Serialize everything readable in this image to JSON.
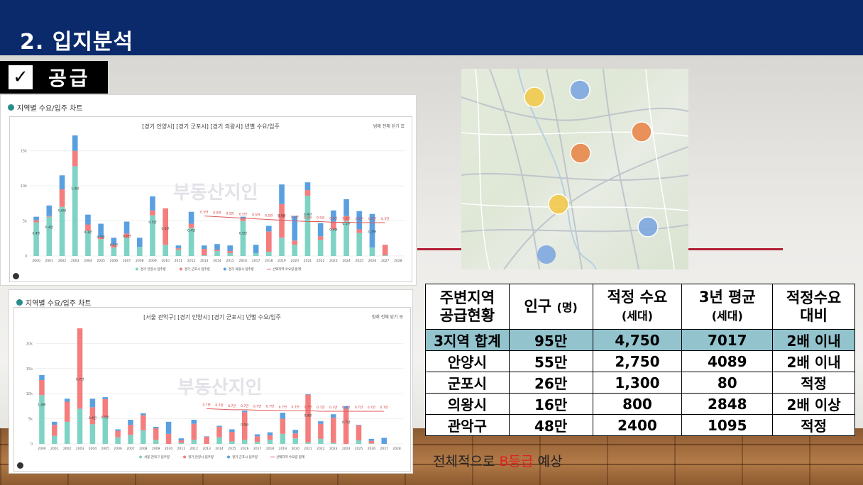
{
  "header": {
    "title": "2. 입지분석"
  },
  "section": {
    "label": "공급"
  },
  "chart_data": [
    {
      "type": "bar",
      "heading": "지역별 수요/입주 차트",
      "title": "[경기 안양시] [경기 군포시] [경기 의왕시] 년별 수요/입주",
      "menu_label": "범례 전체 닫기",
      "watermark": "부동산지인",
      "categories": [
        "2000",
        "2001",
        "2002",
        "2003",
        "2004",
        "2005",
        "2006",
        "2007",
        "2008",
        "2009",
        "2010",
        "2011",
        "2012",
        "2013",
        "2014",
        "2015",
        "2016",
        "2017",
        "2018",
        "2019",
        "2020",
        "2021",
        "2022",
        "2023",
        "2024",
        "2025",
        "2026",
        "2027",
        "2028"
      ],
      "yticks": [
        "0",
        "5k",
        "10k",
        "15k"
      ],
      "ylim": [
        0,
        18000
      ],
      "series": [
        {
          "name": "경기 안양시 입주량",
          "color": "#7fd3c4",
          "values": [
            4800,
            5600,
            7000,
            12800,
            3600,
            2400,
            1200,
            2600,
            1300,
            5800,
            1600,
            900,
            4000,
            100,
            700,
            400,
            5000,
            400,
            600,
            2600,
            1600,
            8600,
            2300,
            3800,
            5000,
            3300,
            1200,
            100,
            0
          ]
        },
        {
          "name": "경기 군포시 입주량",
          "color": "#f47d7d",
          "values": [
            300,
            100,
            2500,
            2200,
            900,
            300,
            400,
            600,
            0,
            700,
            5200,
            200,
            600,
            900,
            200,
            300,
            300,
            0,
            2900,
            4800,
            600,
            800,
            500,
            1100,
            700,
            500,
            0,
            1500,
            0
          ]
        },
        {
          "name": "경기 의왕시 입주량",
          "color": "#5aa0e0",
          "values": [
            500,
            1500,
            2000,
            2200,
            1400,
            1900,
            1000,
            1700,
            1300,
            2000,
            0,
            400,
            1700,
            500,
            800,
            800,
            300,
            1200,
            800,
            2800,
            3500,
            1100,
            1900,
            1600,
            2400,
            2600,
            4800,
            0,
            0
          ]
        },
        {
          "name": "선택지역 수요량 합계",
          "color": "#e05a5a",
          "type": "line",
          "values": [
            null,
            null,
            null,
            null,
            null,
            null,
            null,
            null,
            null,
            null,
            null,
            null,
            null,
            5700,
            5600,
            5500,
            5400,
            5300,
            5200,
            5100,
            5000,
            4900,
            4900,
            4800,
            4800,
            4750,
            4750,
            4750,
            null
          ]
        }
      ],
      "data_labels": [
        {
          "x": "2000",
          "value": "0.4만"
        },
        {
          "x": "2001",
          "value": "0.4만"
        },
        {
          "x": "2002",
          "value": "0.6만"
        },
        {
          "x": "2003",
          "value": "1.3만"
        },
        {
          "x": "2004",
          "value": "0.3만"
        },
        {
          "x": "2005",
          "value": "0.2만"
        },
        {
          "x": "2006",
          "value": "0.1만"
        },
        {
          "x": "2007",
          "value": "0.2만"
        },
        {
          "x": "2009",
          "value": "0.5만"
        },
        {
          "x": "2010",
          "value": "0.5만"
        },
        {
          "x": "2012",
          "value": "0.4만"
        },
        {
          "x": "2016",
          "value": "0.5만"
        },
        {
          "x": "2019",
          "value": "0.8만"
        },
        {
          "x": "2021",
          "value": "0.9만"
        },
        {
          "x": "2023",
          "value": "0.4만"
        },
        {
          "x": "2024",
          "value": "0.5만"
        },
        {
          "x": "2026",
          "value": "0.3만"
        }
      ],
      "demand_labels": [
        "0.5만",
        "0.5만",
        "0.5만",
        "0.5만",
        "0.5만",
        "0.5만",
        "0.5만",
        "0.5만",
        "0.5만",
        "0.5만",
        "0.5만",
        "0.5만",
        "0.5만",
        "0.5만",
        "0.5만",
        "0.5만"
      ],
      "legend": [
        "경기 안양시 입주량",
        "경기 군포시 입주량",
        "경기 의왕시 입주량",
        "선택지역 수요량 합계"
      ]
    },
    {
      "type": "bar",
      "heading": "지역별 수요/입주 차트",
      "title": "[서울 관악구] [경기 안양시] [경기 군포시] 년별 수요/입주",
      "menu_label": "범례 전체 닫기",
      "watermark": "부동산지인",
      "categories": [
        "2000",
        "2001",
        "2002",
        "2003",
        "2004",
        "2005",
        "2006",
        "2007",
        "2008",
        "2009",
        "2010",
        "2011",
        "2012",
        "2013",
        "2014",
        "2015",
        "2016",
        "2017",
        "2018",
        "2019",
        "2020",
        "2021",
        "2022",
        "2023",
        "2024",
        "2025",
        "2026",
        "2027",
        "2028"
      ],
      "yticks": [
        "0",
        "5k",
        "10k",
        "15k",
        "20k"
      ],
      "ylim": [
        0,
        24000
      ],
      "series": [
        {
          "name": "서울 관악구 입주량",
          "color": "#7fd3c4",
          "values": [
            9700,
            1600,
            4400,
            7000,
            3900,
            5300,
            1300,
            1800,
            2700,
            800,
            0,
            200,
            800,
            0,
            1300,
            500,
            800,
            400,
            800,
            2000,
            1100,
            300,
            1000,
            200,
            0,
            700,
            100,
            0,
            0
          ]
        },
        {
          "name": "경기 안양시 입주량",
          "color": "#f47d7d",
          "values": [
            3000,
            2200,
            4000,
            16000,
            3400,
            3600,
            1300,
            2000,
            3000,
            2300,
            2000,
            500,
            3200,
            1400,
            2100,
            1900,
            5500,
            1100,
            900,
            3000,
            1000,
            9500,
            3000,
            5000,
            7000,
            3000,
            500,
            0,
            0
          ]
        },
        {
          "name": "경기 군포시 입주량",
          "color": "#5aa0e0",
          "values": [
            1000,
            600,
            600,
            0,
            1700,
            400,
            300,
            1000,
            400,
            300,
            2400,
            400,
            800,
            100,
            200,
            500,
            300,
            400,
            600,
            1200,
            700,
            100,
            500,
            700,
            500,
            100,
            400,
            1200,
            0
          ]
        },
        {
          "name": "선택지역 수요량 합계",
          "color": "#e05a5a",
          "type": "line",
          "values": [
            null,
            null,
            null,
            null,
            null,
            null,
            null,
            null,
            null,
            null,
            null,
            null,
            null,
            7000,
            6900,
            6800,
            6800,
            6700,
            6700,
            6600,
            6600,
            6600,
            6500,
            6500,
            6500,
            6500,
            6500,
            6500,
            null
          ]
        }
      ],
      "data_labels": [
        {
          "x": "2000",
          "value": "1.0만"
        },
        {
          "x": "2003",
          "value": "0.7만"
        },
        {
          "x": "2004",
          "value": "0.4만"
        },
        {
          "x": "2005",
          "value": "0.5만"
        },
        {
          "x": "2016",
          "value": "0.5만"
        },
        {
          "x": "2021",
          "value": "0.9만"
        },
        {
          "x": "2024",
          "value": "0.7만"
        }
      ],
      "demand_labels": [
        "0.7만",
        "0.7만",
        "0.7만",
        "0.7만",
        "0.7만",
        "0.7만",
        "0.7만",
        "0.7만",
        "0.7만",
        "0.7만",
        "0.7만",
        "0.7만",
        "0.7만",
        "0.7만",
        "0.7만"
      ],
      "legend": [
        "서울 관악구 입주량",
        "경기 안양시 입주량",
        "경기 군포시 입주량",
        "선택지역 수요량 합계"
      ]
    }
  ],
  "map": {
    "markers": [
      {
        "color": "#f2c94c"
      },
      {
        "color": "#7ea7e0"
      },
      {
        "color": "#e8874a"
      },
      {
        "color": "#e8874a"
      },
      {
        "color": "#f2c94c"
      },
      {
        "color": "#7ea7e0"
      }
    ]
  },
  "table": {
    "headers": [
      {
        "main": "주변지역",
        "sub": "공급현황",
        "sub_small": false
      },
      {
        "main": "인구",
        "sub": "(명)",
        "inline": true
      },
      {
        "main": "적정 수요",
        "sub": "(세대)",
        "sub_small": true
      },
      {
        "main": "3년 평균",
        "sub": "(세대)",
        "sub_small": true
      },
      {
        "main": "적정수요",
        "sub": "대비",
        "sub_small": false
      }
    ],
    "rows": [
      {
        "region": "3지역 합계",
        "population": "95만",
        "demand": "4,750",
        "avg3y": "7017",
        "ratio": "2배 이내",
        "highlight": true
      },
      {
        "region": "안양시",
        "population": "55만",
        "demand": "2,750",
        "avg3y": "4089",
        "ratio": "2배 이내",
        "highlight": false
      },
      {
        "region": "군포시",
        "population": "26만",
        "demand": "1,300",
        "avg3y": "80",
        "ratio": "적정",
        "highlight": false
      },
      {
        "region": "의왕시",
        "population": "16만",
        "demand": "800",
        "avg3y": "2848",
        "ratio": "2배 이상",
        "highlight": false
      },
      {
        "region": "관악구",
        "population": "48만",
        "demand": "2400",
        "avg3y": "1095",
        "ratio": "적정",
        "highlight": false
      }
    ]
  },
  "summary": {
    "prefix": "전체적으로 ",
    "grade": "B등급",
    "suffix": " 예상"
  }
}
